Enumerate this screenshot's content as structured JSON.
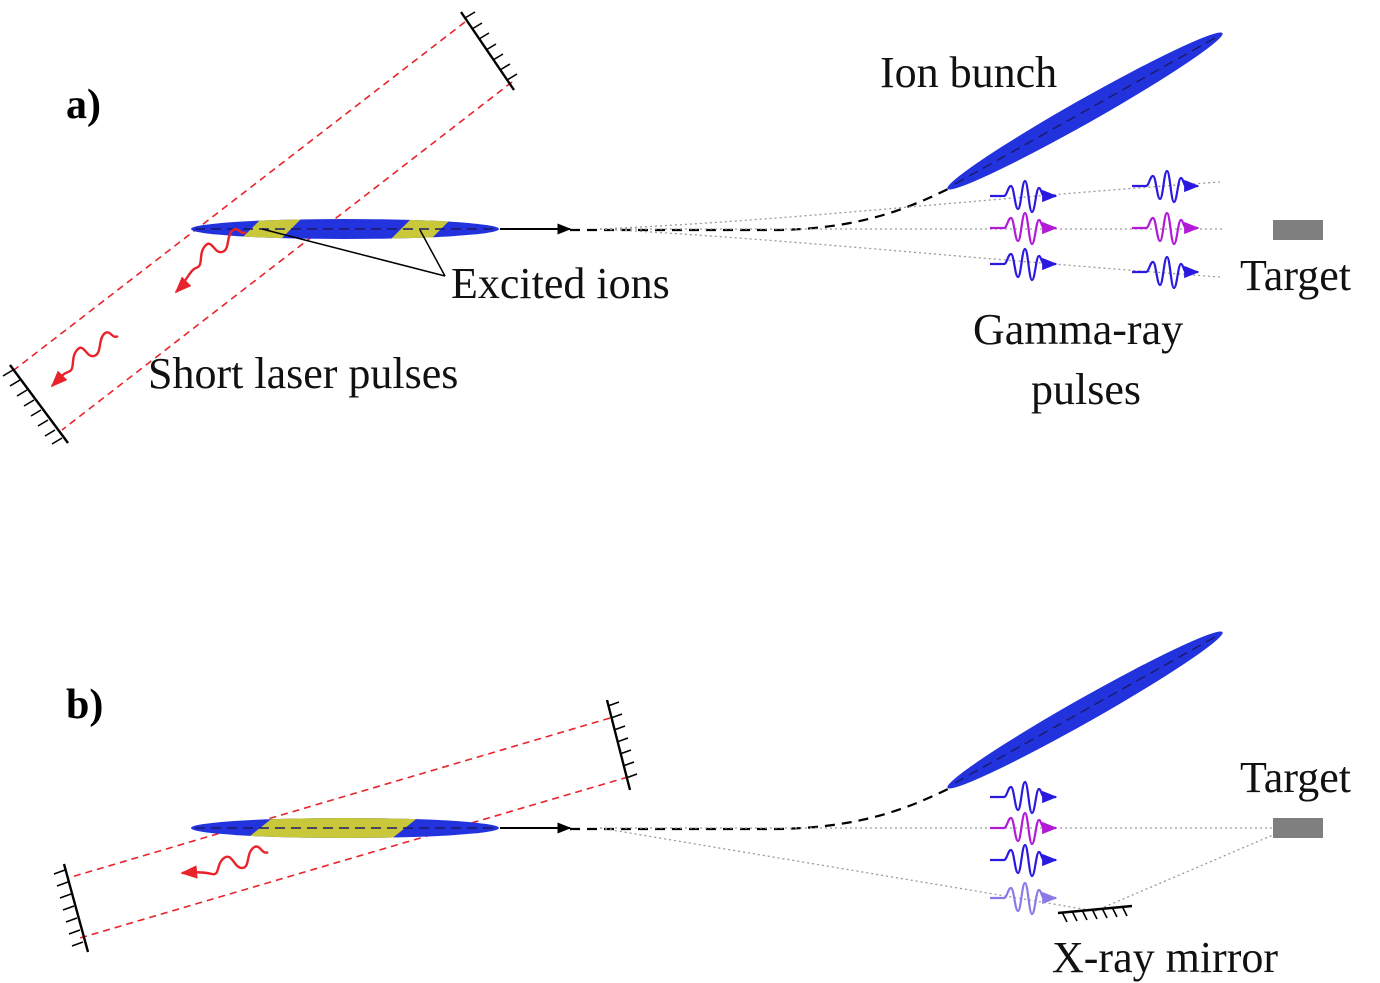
{
  "panels": {
    "a": {
      "panel_label": "a)",
      "labels": {
        "ion_bunch": "Ion bunch",
        "excited_ions": "Excited ions",
        "short_laser_pulses": "Short laser pulses",
        "gamma_ray_pulses_line1": "Gamma-ray",
        "gamma_ray_pulses_line2": "pulses",
        "target": "Target"
      }
    },
    "b": {
      "panel_label": "b)",
      "labels": {
        "target": "Target",
        "x_ray_mirror": "X-ray mirror"
      }
    }
  },
  "colors": {
    "ion_bunch": "#2233dd",
    "excited_region": "#c8c83a",
    "laser": "#e8232b",
    "gamma_blue": "#2a1ae0",
    "gamma_magenta": "#b21ad8",
    "gamma_faded": "#8a7ae8",
    "target": "#7f7f7f"
  }
}
